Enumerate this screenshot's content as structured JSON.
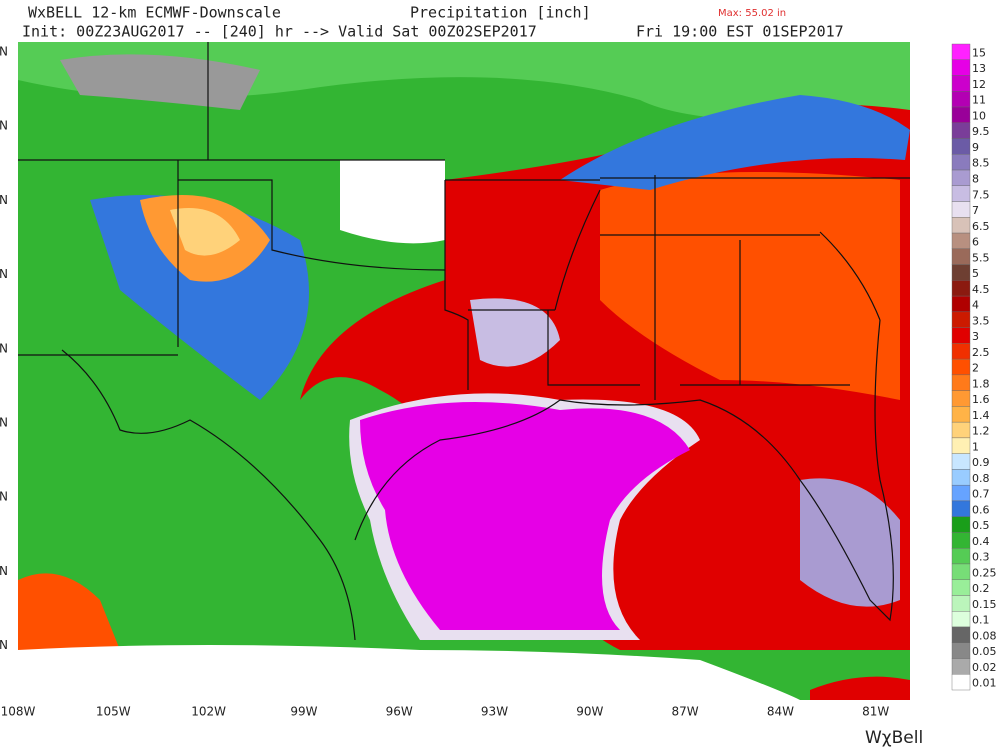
{
  "header": {
    "model": "WxBELL 12-km ECMWF-Downscale",
    "field": "Precipitation [inch]",
    "max": "Max: 55.02 in",
    "init": "Init: 00Z23AUG2017 -- [240] hr --> Valid Sat 00Z02SEP2017",
    "valid_local": "Fri 19:00 EST 01SEP2017"
  },
  "map": {
    "longitudes": [
      "108W",
      "105W",
      "102W",
      "99W",
      "96W",
      "93W",
      "90W",
      "87W",
      "84W",
      "81W"
    ],
    "latitudes": [
      "N",
      "N",
      "N",
      "N",
      "N",
      "N",
      "N",
      "N",
      "N"
    ]
  },
  "legend": {
    "labels": [
      "15",
      "13",
      "12",
      "11",
      "10",
      "9.5",
      "9",
      "8.5",
      "8",
      "7.5",
      "7",
      "6.5",
      "6",
      "5.5",
      "5",
      "4.5",
      "4",
      "3.5",
      "3",
      "2.5",
      "2",
      "1.8",
      "1.6",
      "1.4",
      "1.2",
      "1",
      "0.9",
      "0.8",
      "0.7",
      "0.6",
      "0.5",
      "0.4",
      "0.3",
      "0.25",
      "0.2",
      "0.15",
      "0.1",
      "0.08",
      "0.05",
      "0.02",
      "0.01"
    ],
    "colors": [
      "#ff22ff",
      "#e600e6",
      "#cc00cc",
      "#b300b3",
      "#990099",
      "#7a3d99",
      "#6b5ba6",
      "#8a7bbd",
      "#a99bd1",
      "#c8bde3",
      "#e8e0f0",
      "#d8c2b8",
      "#b89080",
      "#9a6a5a",
      "#6e3f32",
      "#8b1a10",
      "#b00000",
      "#cc1a00",
      "#e00000",
      "#f03000",
      "#ff5000",
      "#ff7a1a",
      "#ff9933",
      "#ffb347",
      "#ffd27a",
      "#fff0b3",
      "#c8e6ff",
      "#99ccff",
      "#66a3ff",
      "#3377dd",
      "#1a9e1a",
      "#33b533",
      "#55cc55",
      "#77dd77",
      "#99ee99",
      "#bbf5bb",
      "#ddffdd",
      "#666666",
      "#888888",
      "#aaaaaa",
      "#ffffff"
    ]
  },
  "logo": "WχBell"
}
